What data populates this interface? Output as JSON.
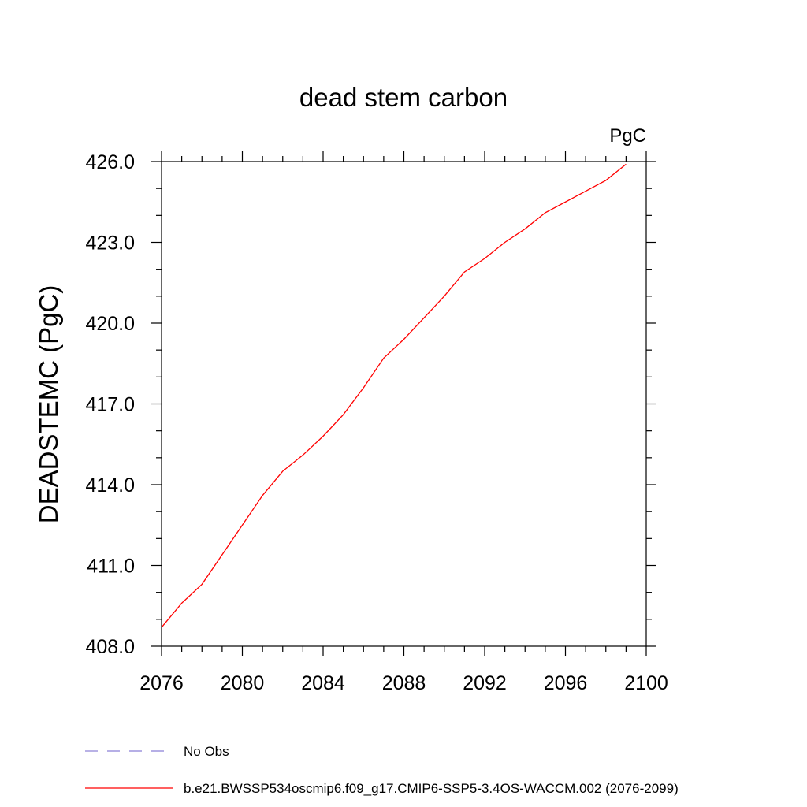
{
  "chart_data": {
    "type": "line",
    "title": "dead stem carbon",
    "units_label": "PgC",
    "ylabel": "DEADSTEMC  (PgC)",
    "xlabel": "",
    "xlim": [
      2076,
      2100
    ],
    "ylim": [
      408.0,
      426.0
    ],
    "x_ticks": [
      2076,
      2080,
      2084,
      2088,
      2092,
      2096,
      2100
    ],
    "y_ticks": [
      "408.0",
      "411.0",
      "414.0",
      "417.0",
      "420.0",
      "423.0",
      "426.0"
    ],
    "grid": false,
    "legend_position": "bottom",
    "legend": [
      {
        "label": "No Obs",
        "color": "#8a7fd6",
        "style": "dashed"
      },
      {
        "label": "b.e21.BWSSP534oscmip6.f09_g17.CMIP6-SSP5-3.4OS-WACCM.002 (2076-2099)",
        "color": "#ff0000",
        "style": "solid"
      }
    ],
    "series": [
      {
        "name": "b.e21.BWSSP534oscmip6.f09_g17.CMIP6-SSP5-3.4OS-WACCM.002 (2076-2099)",
        "color": "#ff0000",
        "x": [
          2076,
          2077,
          2078,
          2079,
          2080,
          2081,
          2082,
          2083,
          2084,
          2085,
          2086,
          2087,
          2088,
          2089,
          2090,
          2091,
          2092,
          2093,
          2094,
          2095,
          2096,
          2097,
          2098,
          2099
        ],
        "y": [
          408.7,
          409.6,
          410.3,
          411.4,
          412.5,
          413.6,
          414.5,
          415.1,
          415.8,
          416.6,
          417.6,
          418.7,
          419.4,
          420.2,
          421.0,
          421.9,
          422.4,
          423.0,
          423.5,
          424.1,
          424.5,
          424.9,
          425.3,
          425.9
        ]
      }
    ]
  }
}
